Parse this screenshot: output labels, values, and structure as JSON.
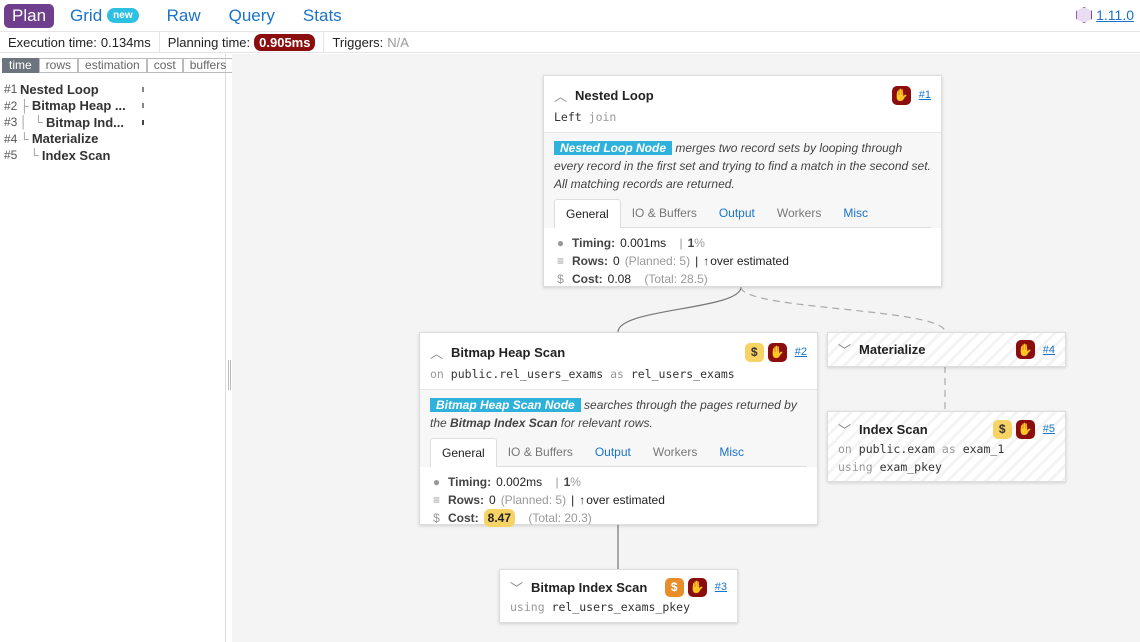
{
  "nav": {
    "items": [
      {
        "label": "Plan",
        "active": true
      },
      {
        "label": "Grid",
        "badge": "new"
      },
      {
        "label": "Raw"
      },
      {
        "label": "Query"
      },
      {
        "label": "Stats"
      }
    ],
    "version": "1.11.0"
  },
  "stats": {
    "execution_label": "Execution time:",
    "execution_value": "0.134ms",
    "planning_label": "Planning time:",
    "planning_value": "0.905ms",
    "triggers_label": "Triggers:",
    "triggers_value": "N/A"
  },
  "sidebar": {
    "tabs": [
      "time",
      "rows",
      "estimation",
      "cost",
      "buffers"
    ],
    "active_tab": "time",
    "tree": [
      {
        "num": "#1",
        "prefix": "",
        "label": "Nested Loop"
      },
      {
        "num": "#2",
        "prefix": "├ ",
        "label": "Bitmap Heap ..."
      },
      {
        "num": "#3",
        "prefix": "│  └ ",
        "label": "Bitmap Ind..."
      },
      {
        "num": "#4",
        "prefix": "└ ",
        "label": "Materialize"
      },
      {
        "num": "#5",
        "prefix": "   └ ",
        "label": "Index Scan"
      }
    ]
  },
  "node_tabs": [
    "General",
    "IO & Buffers",
    "Output",
    "Workers",
    "Misc"
  ],
  "nodes": {
    "n1": {
      "title": "Nested Loop",
      "id": "#1",
      "sub1": "Left",
      "sub2": "join",
      "desc_hl": "Nested Loop Node",
      "desc": "merges two record sets by looping through every record in the first set and trying to find a match in the second set. All matching records are returned.",
      "timing_label": "Timing:",
      "timing": "0.001ms",
      "timing_pct": "1",
      "rows_label": "Rows:",
      "rows": "0",
      "planned": "(Planned: 5)",
      "est": "over estimated",
      "cost_label": "Cost:",
      "cost": "0.08",
      "total": "(Total: 28.5)"
    },
    "n2": {
      "title": "Bitmap Heap Scan",
      "id": "#2",
      "on": "on",
      "rel": "public.rel_users_exams",
      "as": "as",
      "alias": "rel_users_exams",
      "desc_hl": "Bitmap Heap Scan Node",
      "desc1": "searches through the pages returned by the",
      "desc_b": "Bitmap Index Scan",
      "desc2": "for relevant rows.",
      "timing_label": "Timing:",
      "timing": "0.002ms",
      "timing_pct": "1",
      "rows_label": "Rows:",
      "rows": "0",
      "planned": "(Planned: 5)",
      "est": "over estimated",
      "cost_label": "Cost:",
      "cost": "8.47",
      "total": "(Total: 20.3)"
    },
    "n3": {
      "title": "Bitmap Index Scan",
      "id": "#3",
      "using": "using",
      "index": "rel_users_exams_pkey"
    },
    "n4": {
      "title": "Materialize",
      "id": "#4"
    },
    "n5": {
      "title": "Index Scan",
      "id": "#5",
      "on": "on",
      "rel": "public.exam",
      "as": "as",
      "alias": "exam_1",
      "using": "using",
      "index": "exam_pkey"
    }
  },
  "colors": {
    "accent": "#6f3f8e",
    "link": "#1a73c9",
    "danger": "#8b0d0d",
    "cost_warn": "#f7d264",
    "cost_high": "#e98d2b",
    "node_desc": "#2eb2db"
  }
}
